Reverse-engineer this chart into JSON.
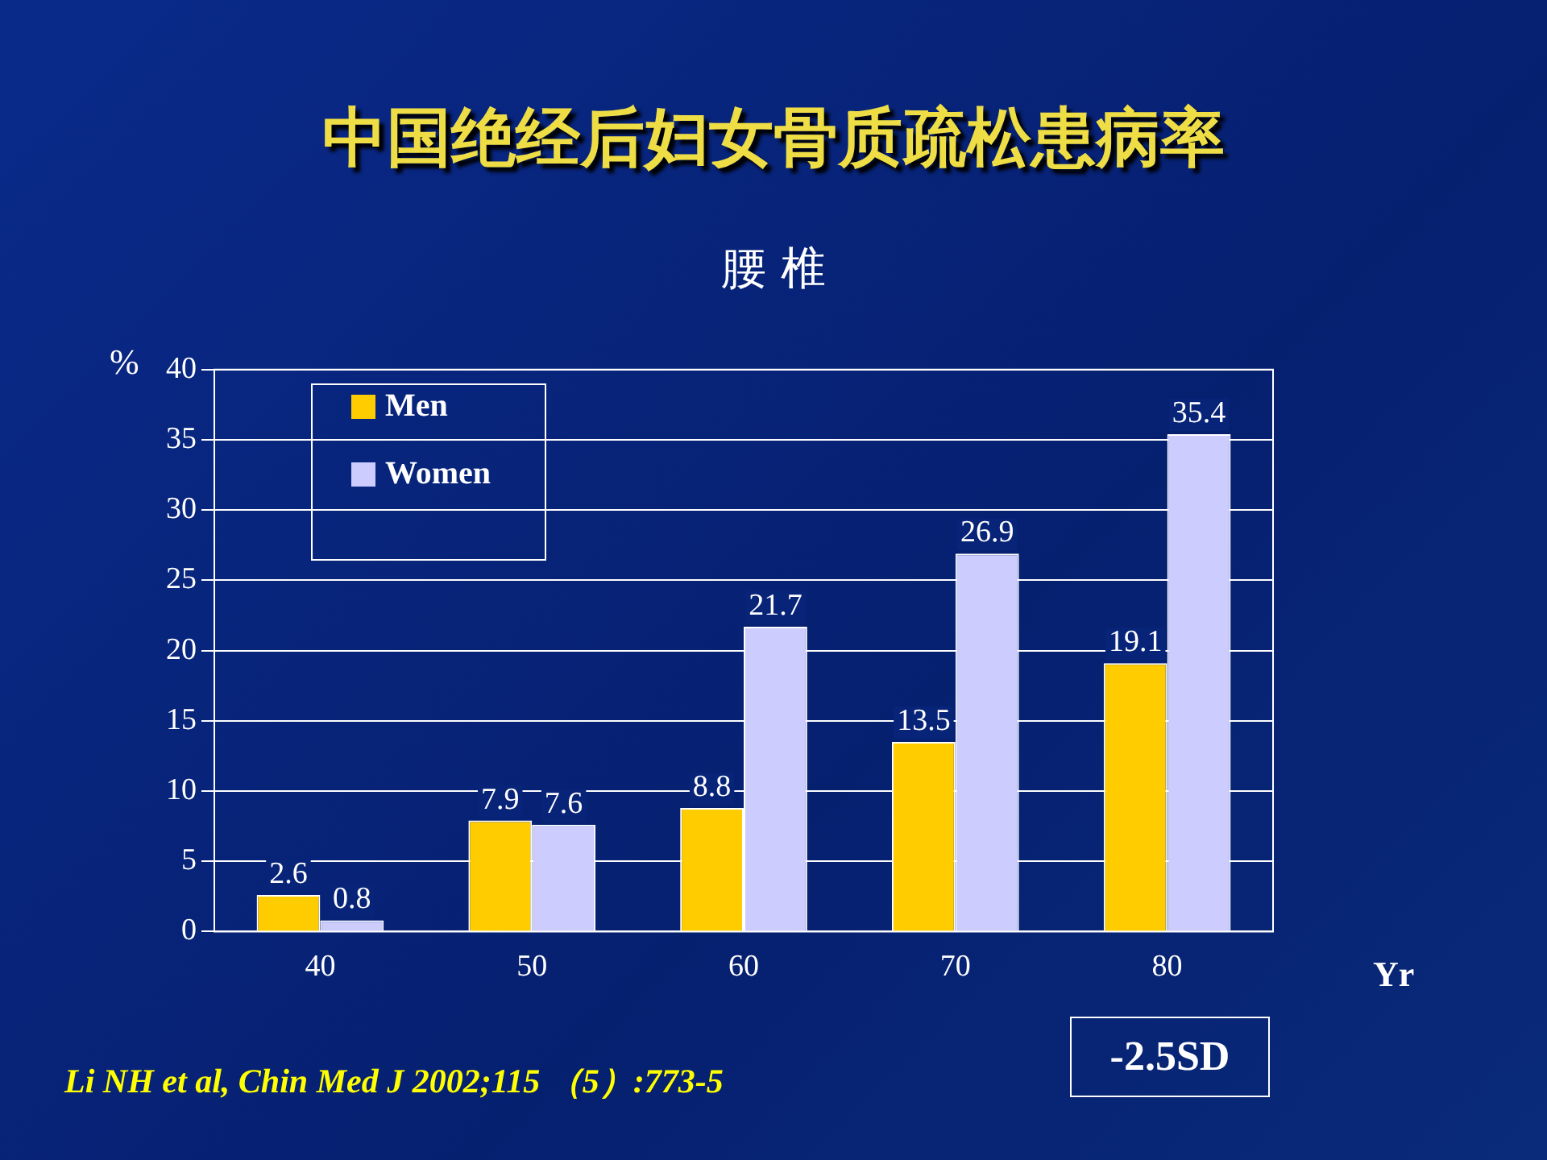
{
  "chart_data": {
    "type": "bar",
    "title": "中国绝经后妇女骨质疏松患病率",
    "subtitle": "腰 椎",
    "xlabel": "Yr",
    "ylabel": "%",
    "categories": [
      "40",
      "50",
      "60",
      "70",
      "80"
    ],
    "series": [
      {
        "name": "Men",
        "color": "#ffcc00",
        "values": [
          2.6,
          7.9,
          8.8,
          13.5,
          19.1
        ]
      },
      {
        "name": "Women",
        "color": "#ccccff",
        "values": [
          0.8,
          7.6,
          21.7,
          26.9,
          35.4
        ]
      }
    ],
    "data_labels": true,
    "ylim": [
      0,
      40
    ],
    "yticks": [
      0,
      5,
      10,
      15,
      20,
      25,
      30,
      35,
      40
    ],
    "grid": "y",
    "legend": "top left",
    "annotations": [
      "Li NH et al, Chin Med J 2002;115 （5）:773-5",
      "-2.5SD"
    ]
  }
}
